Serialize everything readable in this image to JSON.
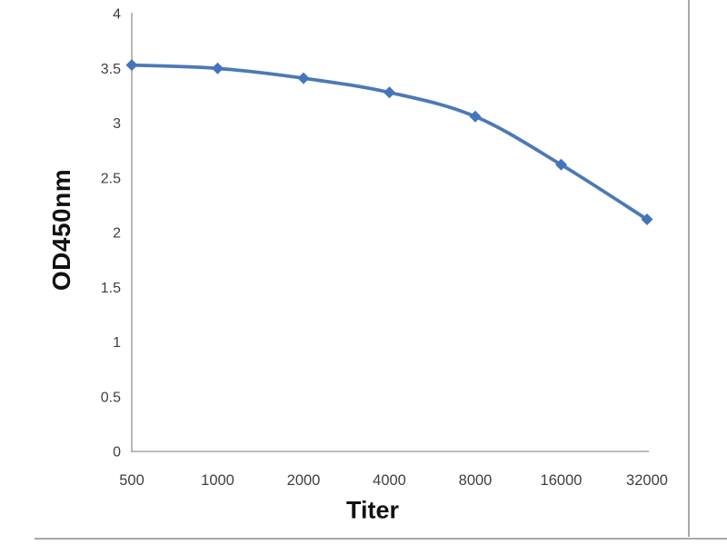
{
  "chart_data": {
    "type": "line",
    "title": "",
    "xlabel": "Titer",
    "ylabel": "OD450nm",
    "categories": [
      "500",
      "1000",
      "2000",
      "4000",
      "8000",
      "16000",
      "32000"
    ],
    "series": [
      {
        "name": "OD450nm",
        "values": [
          3.53,
          3.5,
          3.41,
          3.28,
          3.06,
          2.62,
          2.12
        ]
      }
    ],
    "ylim": [
      0,
      4
    ],
    "y_ticks": [
      4,
      3.5,
      3,
      2.5,
      2,
      1.5,
      1,
      0.5,
      0
    ],
    "grid": false,
    "legend": "none",
    "smooth": true,
    "marker": "diamond",
    "line_color": "#4b7ab5",
    "marker_color": "#4474bb"
  },
  "colors": {
    "background": "#ffffff",
    "axis_line": "#a6a6a6",
    "tick_label": "#3f3f3f",
    "axis_title": "#111111",
    "frame_border": "#a9a9a9"
  }
}
